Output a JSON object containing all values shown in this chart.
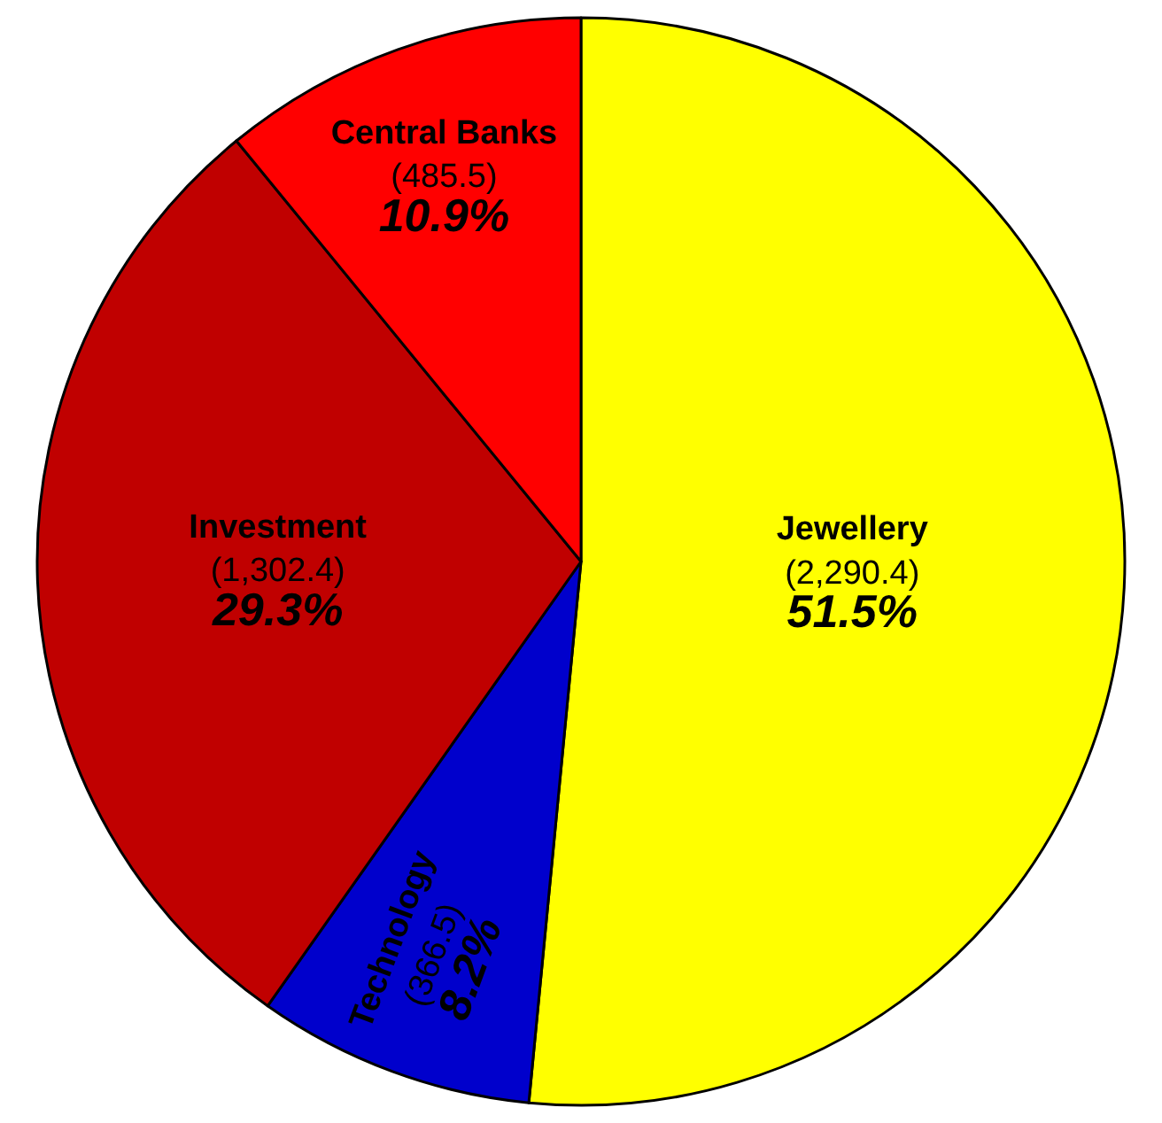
{
  "chart_data": {
    "type": "pie",
    "categories": [
      "Jewellery",
      "Technology",
      "Investment",
      "Central Banks"
    ],
    "values": [
      2290.4,
      366.5,
      1302.4,
      485.5
    ],
    "value_labels": [
      "(2,290.4) 51.5%",
      "(366.5) 8.2%",
      "(1,302.4) 29.3%",
      "(485.5) 10.9%"
    ],
    "colors": [
      "#ffff00",
      "#0000cc",
      "#c00000",
      "#ff0000"
    ],
    "legend": false
  }
}
